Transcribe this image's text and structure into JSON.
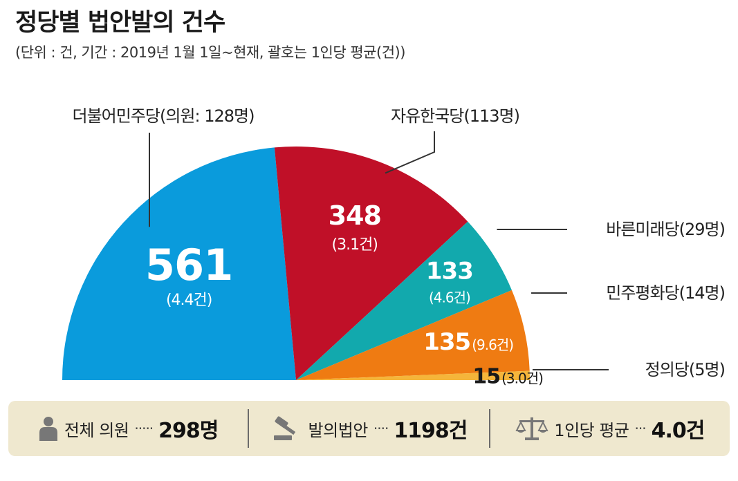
{
  "title": "정당별 법안발의 건수",
  "subtitle": "(단위 : 건, 기간 : 2019년 1월 1일~현재, 괄호는 1인당 평균(건))",
  "chart_data": {
    "type": "pie",
    "shape": "semicircle",
    "unit": "건",
    "slices": [
      {
        "party": "더불어민주당(의원: 128명)",
        "value": 561,
        "per_capita": "(4.4건)",
        "color": "#0a9bdc"
      },
      {
        "party": "자유한국당(113명)",
        "value": 348,
        "per_capita": "(3.1건)",
        "color": "#c01028"
      },
      {
        "party": "바른미래당(29명)",
        "value": 133,
        "per_capita": "(4.6건)",
        "color": "#12a9ad"
      },
      {
        "party": "민주평화당(14명)",
        "value": 135,
        "per_capita": "(9.6건)",
        "color": "#ef7b12"
      },
      {
        "party": "정의당(5명)",
        "value": 15,
        "per_capita": "(3.0건)",
        "color": "#f5b53a"
      }
    ]
  },
  "summary": {
    "members_label": "전체 의원",
    "members_value": "298명",
    "bills_label": "발의법안",
    "bills_value": "1198건",
    "avg_label": "1인당 평균",
    "avg_value": "4.0건",
    "icons": [
      "person-icon",
      "gavel-icon",
      "scale-icon"
    ],
    "background_color": "#efe8cf"
  }
}
